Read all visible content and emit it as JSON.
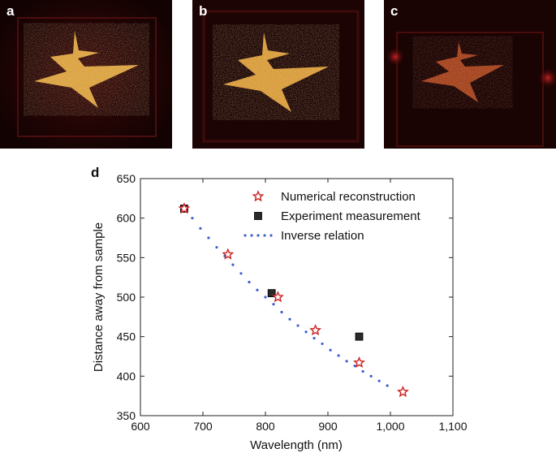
{
  "panels": [
    {
      "label": "a"
    },
    {
      "label": "b"
    },
    {
      "label": "c"
    }
  ],
  "chart_label": "d",
  "chart_data": {
    "type": "scatter",
    "xlabel": "Wavelength (nm)",
    "ylabel": "Distance away from sample",
    "xlim": [
      600,
      1100
    ],
    "ylim": [
      350,
      650
    ],
    "xticks": [
      "600",
      "700",
      "800",
      "900",
      "1,000",
      "1,100"
    ],
    "yticks": [
      "350",
      "400",
      "450",
      "500",
      "550",
      "600",
      "650"
    ],
    "grid": false,
    "legend_position": "top-right",
    "series": [
      {
        "name": "Numerical reconstruction",
        "marker": "star",
        "color": "#cc2222",
        "x": [
          670,
          740,
          820,
          880,
          950,
          1020
        ],
        "y": [
          612,
          554,
          500,
          458,
          417,
          380
        ]
      },
      {
        "name": "Experiment measurement",
        "marker": "square",
        "color": "#2a2a2a",
        "x": [
          670,
          810,
          950
        ],
        "y": [
          612,
          505,
          450
        ]
      },
      {
        "name": "Inverse relation",
        "marker": "dot",
        "color": "#3a5fcd",
        "x": [
          670,
          683,
          696,
          709,
          722,
          735,
          748,
          761,
          774,
          787,
          800,
          813,
          826,
          839,
          852,
          865,
          878,
          891,
          904,
          917,
          930,
          943,
          956,
          969,
          982,
          995
        ],
        "y": [
          612,
          600,
          587,
          575,
          563,
          552,
          541,
          530,
          519,
          509,
          500,
          491,
          481,
          472,
          464,
          456,
          448,
          441,
          433,
          426,
          419,
          413,
          406,
          400,
          394,
          388
        ]
      }
    ]
  }
}
